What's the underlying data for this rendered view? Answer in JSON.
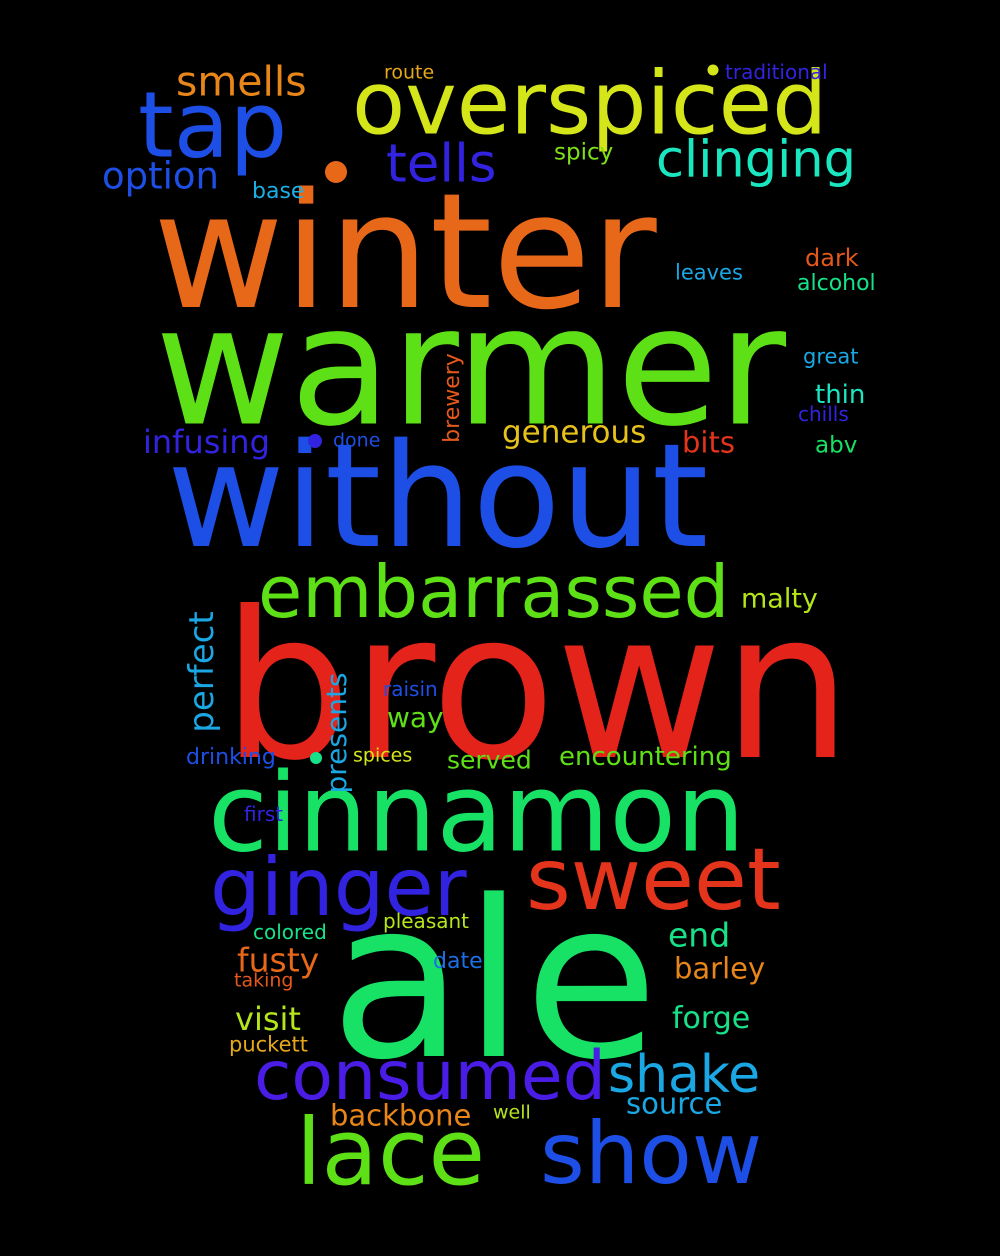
{
  "background": "#000000",
  "words": [
    {
      "id": "winter",
      "text": "winter",
      "color": "#e8681a"
    },
    {
      "id": "warmer",
      "text": "warmer",
      "color": "#5ee016"
    },
    {
      "id": "without",
      "text": "without",
      "color": "#1d4fe6"
    },
    {
      "id": "brown",
      "text": "brown",
      "color": "#e4231b"
    },
    {
      "id": "cinnamon",
      "text": "cinnamon",
      "color": "#17e265"
    },
    {
      "id": "ale",
      "text": "ale",
      "color": "#17e265"
    },
    {
      "id": "overspiced",
      "text": "overspiced",
      "color": "#d4e61a"
    },
    {
      "id": "tap",
      "text": "tap",
      "color": "#1d4fe6"
    },
    {
      "id": "embarrassed",
      "text": "embarrassed",
      "color": "#5ee016"
    },
    {
      "id": "ginger",
      "text": "ginger",
      "color": "#3223e0"
    },
    {
      "id": "sweet",
      "text": "sweet",
      "color": "#e4341b"
    },
    {
      "id": "consumed",
      "text": "consumed",
      "color": "#4a1de6"
    },
    {
      "id": "lace",
      "text": "lace",
      "color": "#5ee016"
    },
    {
      "id": "show",
      "text": "show",
      "color": "#1d4fe6"
    },
    {
      "id": "shake",
      "text": "shake",
      "color": "#1aa7e4"
    },
    {
      "id": "clinging",
      "text": "clinging",
      "color": "#1ae6c0"
    },
    {
      "id": "tells",
      "text": "tells",
      "color": "#3223e0"
    },
    {
      "id": "smells",
      "text": "smells",
      "color": "#e8861a"
    },
    {
      "id": "option",
      "text": "option",
      "color": "#1d4fe6"
    },
    {
      "id": "generous",
      "text": "generous",
      "color": "#e6c21a"
    },
    {
      "id": "infusing",
      "text": "infusing",
      "color": "#3223e0"
    },
    {
      "id": "perfect",
      "text": "perfect",
      "color": "#1aa7e4"
    },
    {
      "id": "presents",
      "text": "presents",
      "color": "#1aa7e4"
    },
    {
      "id": "malty",
      "text": "malty",
      "color": "#b5e61a"
    },
    {
      "id": "end",
      "text": "end",
      "color": "#17e28a"
    },
    {
      "id": "fusty",
      "text": "fusty",
      "color": "#e8681a"
    },
    {
      "id": "barley",
      "text": "barley",
      "color": "#e8861a"
    },
    {
      "id": "visit",
      "text": "visit",
      "color": "#b5e61a"
    },
    {
      "id": "forge",
      "text": "forge",
      "color": "#17e28a"
    },
    {
      "id": "source",
      "text": "source",
      "color": "#1aa7e4"
    },
    {
      "id": "backbone",
      "text": "backbone",
      "color": "#e8861a"
    },
    {
      "id": "bits",
      "text": "bits",
      "color": "#e4341b"
    },
    {
      "id": "way",
      "text": "way",
      "color": "#5ee016"
    },
    {
      "id": "encountering",
      "text": "encountering",
      "color": "#5ee016"
    },
    {
      "id": "served",
      "text": "served",
      "color": "#5ee016"
    },
    {
      "id": "brewery",
      "text": "brewery",
      "color": "#e4581b"
    },
    {
      "id": "dark",
      "text": "dark",
      "color": "#e4581b"
    },
    {
      "id": "alcohol",
      "text": "alcohol",
      "color": "#17e28a"
    },
    {
      "id": "leaves",
      "text": "leaves",
      "color": "#1aa7e4"
    },
    {
      "id": "great",
      "text": "great",
      "color": "#1aa7e4"
    },
    {
      "id": "thin",
      "text": "thin",
      "color": "#1ae6c0"
    },
    {
      "id": "chills",
      "text": "chills",
      "color": "#3223e0"
    },
    {
      "id": "abv",
      "text": "abv",
      "color": "#17e265"
    },
    {
      "id": "done",
      "text": "done",
      "color": "#1d4fe6"
    },
    {
      "id": "spicy",
      "text": "spicy",
      "color": "#7ee016"
    },
    {
      "id": "base",
      "text": "base",
      "color": "#1ab0e6"
    },
    {
      "id": "route",
      "text": "route",
      "color": "#e6a81a"
    },
    {
      "id": "traditional",
      "text": "traditional",
      "color": "#3223e0"
    },
    {
      "id": "raisin",
      "text": "raisin",
      "color": "#1d4fe6"
    },
    {
      "id": "drinking",
      "text": "drinking",
      "color": "#1d4fe6"
    },
    {
      "id": "spices",
      "text": "spices",
      "color": "#d4e61a"
    },
    {
      "id": "first",
      "text": "first",
      "color": "#3223e0"
    },
    {
      "id": "pleasant",
      "text": "pleasant",
      "color": "#b5e61a"
    },
    {
      "id": "colored",
      "text": "colored",
      "color": "#17e28a"
    },
    {
      "id": "date",
      "text": "date",
      "color": "#1d6fe6"
    },
    {
      "id": "taking",
      "text": "taking",
      "color": "#e4581b"
    },
    {
      "id": "puckett",
      "text": "puckett",
      "color": "#e6a81a"
    },
    {
      "id": "well",
      "text": "well",
      "color": "#b5e61a"
    }
  ]
}
